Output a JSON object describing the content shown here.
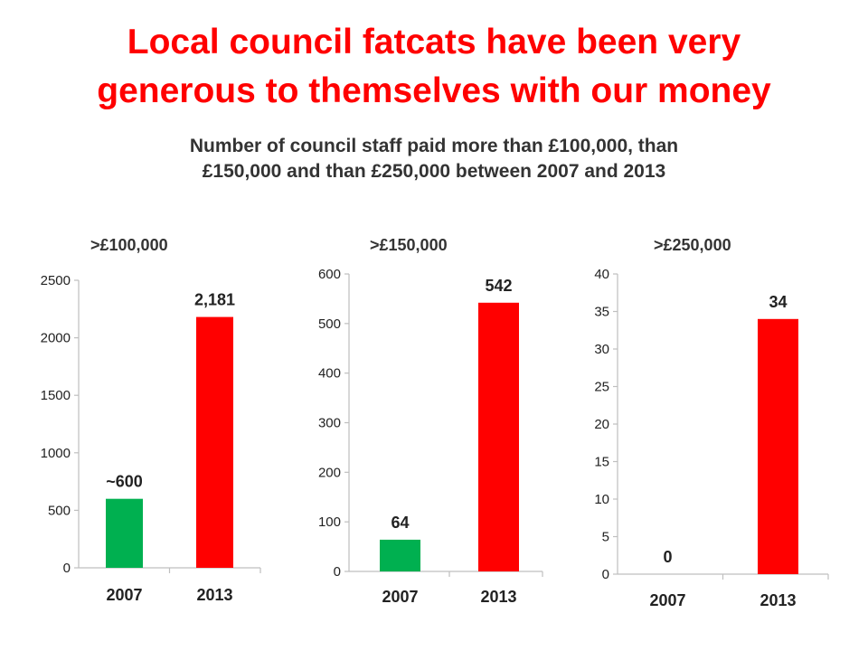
{
  "slide": {
    "title_line1": "Local council fatcats have been very",
    "title_line2": "generous to themselves with our money",
    "subtitle_line1": "Number of council staff paid more than £100,000, than",
    "subtitle_line2": "£150,000 and than £250,000 between 2007 and 2013"
  },
  "colors": {
    "title": "#ff0000",
    "bar_2007": "#00b050",
    "bar_2013": "#ff0000",
    "axis": "#bfbfbf",
    "text": "#333333"
  },
  "chart_data": [
    {
      "type": "bar",
      "title": ">£100,000",
      "categories": [
        "2007",
        "2013"
      ],
      "values": [
        600,
        2181
      ],
      "data_labels": [
        "~600",
        "2,181"
      ],
      "ylim": [
        0,
        2500
      ],
      "yticks": [
        0,
        500,
        1000,
        1500,
        2000,
        2500
      ],
      "grid": false
    },
    {
      "type": "bar",
      "title": ">£150,000",
      "categories": [
        "2007",
        "2013"
      ],
      "values": [
        64,
        542
      ],
      "data_labels": [
        "64",
        "542"
      ],
      "ylim": [
        0,
        600
      ],
      "yticks": [
        0,
        100,
        200,
        300,
        400,
        500,
        600
      ],
      "grid": false
    },
    {
      "type": "bar",
      "title": ">£250,000",
      "categories": [
        "2007",
        "2013"
      ],
      "values": [
        0,
        34
      ],
      "data_labels": [
        "0",
        "34"
      ],
      "ylim": [
        0,
        40
      ],
      "yticks": [
        0,
        5,
        10,
        15,
        20,
        25,
        30,
        35,
        40
      ],
      "grid": false
    }
  ]
}
